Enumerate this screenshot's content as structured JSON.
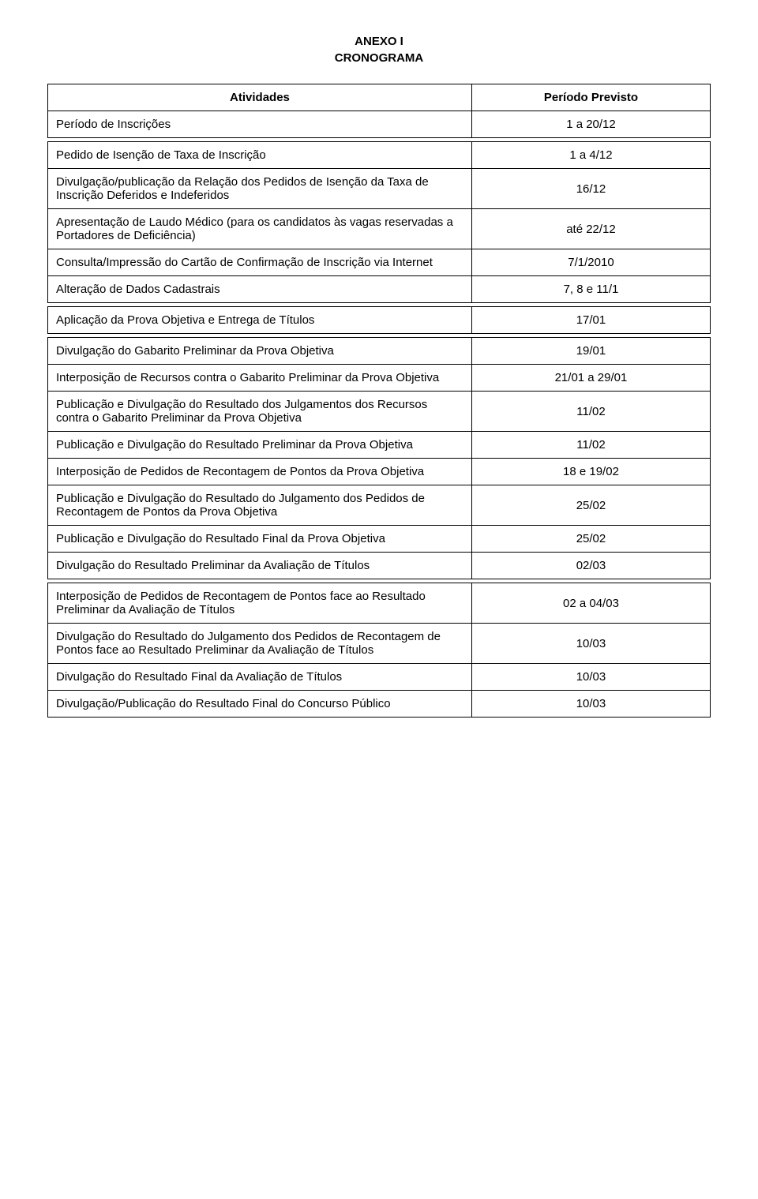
{
  "header": {
    "line1": "ANEXO I",
    "line2": "CRONOGRAMA"
  },
  "headerRow": {
    "activity": "Atividades",
    "period": "Período Previsto"
  },
  "rows": [
    {
      "activity": "Período de Inscrições",
      "period": "1 a 20/12"
    },
    {
      "activity": "Pedido de Isenção de Taxa de Inscrição",
      "period": "1 a 4/12"
    },
    {
      "activity": "Divulgação/publicação da Relação dos Pedidos de Isenção da Taxa de Inscrição Deferidos e Indeferidos",
      "period": "16/12"
    },
    {
      "activity": "Apresentação de Laudo Médico (para os candidatos às vagas reservadas a Portadores de Deficiência)",
      "period": "até 22/12"
    },
    {
      "activity": "Consulta/Impressão do Cartão de Confirmação de Inscrição via Internet",
      "period": "7/1/2010"
    },
    {
      "activity": "Alteração de Dados Cadastrais",
      "period": "7, 8 e 11/1"
    },
    {
      "activity": "Aplicação da Prova Objetiva e Entrega de Títulos",
      "period": "17/01"
    },
    {
      "activity": "Divulgação do Gabarito Preliminar da Prova Objetiva",
      "period": "19/01"
    },
    {
      "activity": "Interposição de Recursos contra o Gabarito Preliminar da Prova Objetiva",
      "period": "21/01 a 29/01"
    },
    {
      "activity": "Publicação e Divulgação do Resultado dos Julgamentos dos Recursos contra o Gabarito Preliminar da Prova Objetiva",
      "period": "11/02"
    },
    {
      "activity": "Publicação e Divulgação do Resultado Preliminar da Prova Objetiva",
      "period": "11/02"
    },
    {
      "activity": "Interposição de Pedidos de Recontagem de Pontos da Prova Objetiva",
      "period": "18 e 19/02"
    },
    {
      "activity": "Publicação e Divulgação do Resultado do Julgamento dos Pedidos de Recontagem de Pontos da Prova Objetiva",
      "period": "25/02"
    },
    {
      "activity": "Publicação e Divulgação do Resultado Final da Prova Objetiva",
      "period": "25/02"
    },
    {
      "activity": "Divulgação do Resultado Preliminar da Avaliação de Títulos",
      "period": "02/03"
    },
    {
      "activity": "Interposição de Pedidos de Recontagem de Pontos face ao Resultado Preliminar da Avaliação de Títulos",
      "period": "02 a 04/03"
    },
    {
      "activity": "Divulgação do Resultado do Julgamento dos Pedidos de Recontagem de Pontos face ao Resultado Preliminar da Avaliação de Títulos",
      "period": "10/03"
    },
    {
      "activity": "Divulgação do Resultado Final da Avaliação de Títulos",
      "period": "10/03"
    },
    {
      "activity": "Divulgação/Publicação do Resultado Final do Concurso Público",
      "period": "10/03"
    }
  ]
}
